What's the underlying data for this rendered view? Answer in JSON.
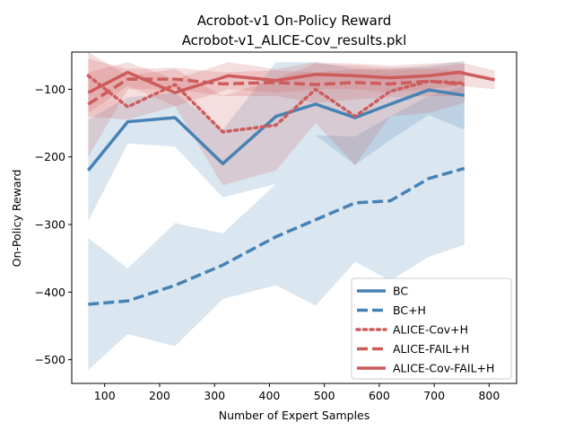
{
  "chart_data": {
    "type": "line",
    "title": "Acrobot-v1 On-Policy Reward",
    "subtitle": "Acrobot-v1_ALICE-Cov_results.pkl",
    "xlabel": "Number of Expert Samples",
    "ylabel": "On-Policy Reward",
    "xlim": [
      40,
      850
    ],
    "ylim": [
      -535,
      -45
    ],
    "xticks": [
      100,
      200,
      300,
      400,
      500,
      600,
      700,
      800
    ],
    "yticks": [
      -100,
      -200,
      -300,
      -400,
      -500
    ],
    "grid": false,
    "legend_position": "lower right",
    "colors": {
      "blue": "#4682b4",
      "red": "#cd5c5c"
    },
    "series": [
      {
        "name": "BC",
        "color": "#4682b4",
        "dash": "solid",
        "x": [
          70,
          142,
          228,
          315,
          412,
          484,
          556,
          620,
          690,
          755
        ],
        "y": [
          -220,
          -148,
          -142,
          -210,
          -140,
          -122,
          -142,
          -122,
          -101,
          -109
        ],
        "band_low": [
          -295,
          -180,
          -185,
          -260,
          -240,
          -168,
          -212,
          -175,
          -138,
          -160
        ],
        "band_high": [
          -145,
          -112,
          -105,
          -160,
          -60,
          -60,
          -70,
          -70,
          -65,
          -58
        ]
      },
      {
        "name": "BC+H",
        "color": "#4682b4",
        "dash": "dashed",
        "x": [
          70,
          142,
          228,
          315,
          412,
          484,
          556,
          620,
          690,
          755
        ],
        "y": [
          -418,
          -413,
          -390,
          -360,
          -318,
          -293,
          -268,
          -265,
          -232,
          -217
        ],
        "band_low": [
          -515,
          -462,
          -480,
          -410,
          -390,
          -420,
          -355,
          -383,
          -348,
          -330
        ],
        "band_high": [
          -320,
          -365,
          -298,
          -313,
          -240,
          -168,
          -170,
          -140,
          -110,
          -95
        ]
      },
      {
        "name": "ALICE-Cov+H",
        "color": "#cd5c5c",
        "dash": "dotted",
        "x": [
          70,
          142,
          228,
          315,
          412,
          484,
          556,
          620,
          690,
          755
        ],
        "y": [
          -80,
          -126,
          -93,
          -163,
          -153,
          -100,
          -140,
          -103,
          -88,
          -91
        ],
        "band_low": [
          -140,
          -145,
          -125,
          -242,
          -220,
          -150,
          -212,
          -140,
          -135,
          -120
        ],
        "band_high": [
          -45,
          -80,
          -70,
          -110,
          -85,
          -62,
          -65,
          -68,
          -68,
          -62
        ]
      },
      {
        "name": "ALICE-FAIL+H",
        "color": "#cd5c5c",
        "dash": "dashed",
        "x": [
          70,
          142,
          228,
          315,
          412,
          484,
          556,
          620,
          690,
          755
        ],
        "y": [
          -122,
          -85,
          -85,
          -92,
          -90,
          -93,
          -90,
          -92,
          -88,
          -93
        ],
        "band_low": [
          -200,
          -100,
          -100,
          -110,
          -110,
          -120,
          -115,
          -112,
          -110,
          -110
        ],
        "band_high": [
          -55,
          -70,
          -68,
          -75,
          -72,
          -75,
          -70,
          -72,
          -70,
          -72
        ]
      },
      {
        "name": "ALICE-Cov-FAIL+H",
        "color": "#cd5c5c",
        "dash": "solid",
        "x": [
          70,
          142,
          228,
          325,
          412,
          484,
          556,
          620,
          690,
          745,
          810
        ],
        "y": [
          -105,
          -75,
          -105,
          -80,
          -87,
          -78,
          -80,
          -83,
          -80,
          -75,
          -86
        ],
        "band_low": [
          -135,
          -95,
          -125,
          -100,
          -105,
          -100,
          -100,
          -105,
          -100,
          -95,
          -100
        ],
        "band_high": [
          -75,
          -60,
          -85,
          -60,
          -70,
          -60,
          -62,
          -65,
          -62,
          -60,
          -72
        ]
      }
    ]
  }
}
